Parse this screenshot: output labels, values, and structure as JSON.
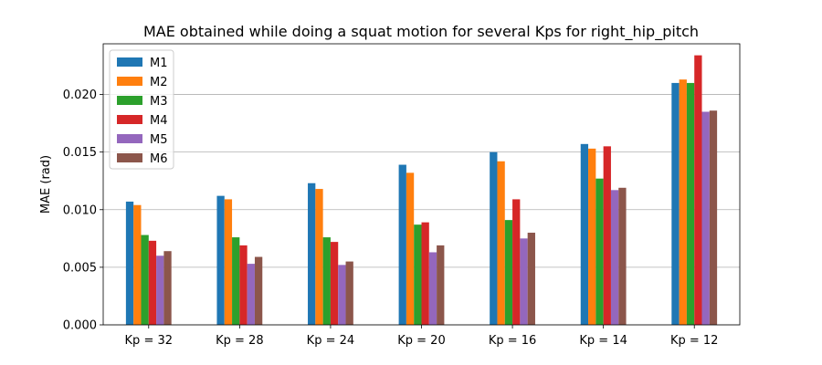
{
  "chart_data": {
    "type": "bar",
    "title": "MAE obtained while doing a squat motion for several Kps for right_hip_pitch",
    "xlabel": "",
    "ylabel": "MAE (rad)",
    "ylim": [
      0,
      0.0244
    ],
    "yticks": [
      "0.000",
      "0.005",
      "0.010",
      "0.015",
      "0.020"
    ],
    "ytick_values": [
      0,
      0.005,
      0.01,
      0.015,
      0.02
    ],
    "grid": "horizontal",
    "legend_position": "top-left",
    "categories": [
      "Kp = 32",
      "Kp = 28",
      "Kp = 24",
      "Kp = 20",
      "Kp = 16",
      "Kp = 14",
      "Kp = 12"
    ],
    "series": [
      {
        "name": "M1",
        "color": "#1f77b4",
        "values": [
          0.0107,
          0.0112,
          0.0123,
          0.0139,
          0.015,
          0.0157,
          0.021
        ]
      },
      {
        "name": "M2",
        "color": "#ff7f0e",
        "values": [
          0.0104,
          0.0109,
          0.0118,
          0.0132,
          0.0142,
          0.0153,
          0.0213
        ]
      },
      {
        "name": "M3",
        "color": "#2ca02c",
        "values": [
          0.0078,
          0.0076,
          0.0076,
          0.0087,
          0.0091,
          0.0127,
          0.021
        ]
      },
      {
        "name": "M4",
        "color": "#d62728",
        "values": [
          0.0073,
          0.0069,
          0.0072,
          0.0089,
          0.0109,
          0.0155,
          0.0234
        ]
      },
      {
        "name": "M5",
        "color": "#9467bd",
        "values": [
          0.006,
          0.0053,
          0.0052,
          0.0063,
          0.0075,
          0.0117,
          0.0185
        ]
      },
      {
        "name": "M6",
        "color": "#8c564b",
        "values": [
          0.0064,
          0.0059,
          0.0055,
          0.0069,
          0.008,
          0.0119,
          0.0186
        ]
      }
    ]
  }
}
